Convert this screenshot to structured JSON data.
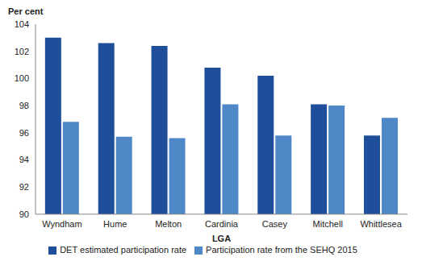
{
  "chart_data": {
    "type": "bar",
    "y_label": "Per cent",
    "x_label": "LGA",
    "categories": [
      "Wyndham",
      "Hume",
      "Melton",
      "Cardinia",
      "Casey",
      "Mitchell",
      "Whittlesea"
    ],
    "series": [
      {
        "name": "DET estimated participation rate",
        "color": "#1f4e9a",
        "values": [
          103.0,
          102.6,
          102.4,
          100.8,
          100.2,
          98.1,
          95.8
        ]
      },
      {
        "name": "Participation rate from the SEHQ 2015",
        "color": "#4f88c6",
        "values": [
          96.8,
          95.7,
          95.6,
          98.1,
          95.8,
          98.0,
          97.1
        ]
      }
    ],
    "ylim": [
      90,
      104
    ],
    "yticks": [
      90,
      92,
      94,
      96,
      98,
      100,
      102,
      104
    ],
    "grid": false,
    "legend": "bottom"
  }
}
